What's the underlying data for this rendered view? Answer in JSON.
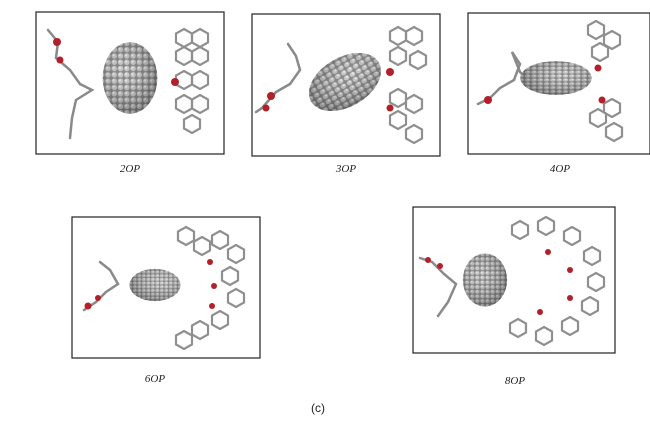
{
  "panels": [
    {
      "label": "2OP"
    },
    {
      "label": "3OP"
    },
    {
      "label": "4OP"
    },
    {
      "label": "6OP"
    },
    {
      "label": "8OP"
    }
  ],
  "caption": "(c)"
}
